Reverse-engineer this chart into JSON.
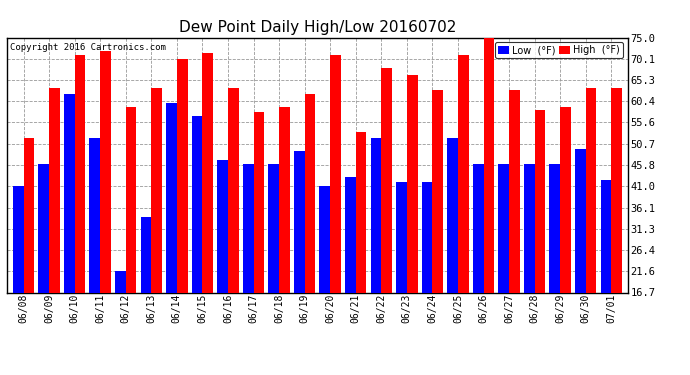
{
  "title": "Dew Point Daily High/Low 20160702",
  "copyright": "Copyright 2016 Cartronics.com",
  "dates": [
    "06/08",
    "06/09",
    "06/10",
    "06/11",
    "06/12",
    "06/13",
    "06/14",
    "06/15",
    "06/16",
    "06/17",
    "06/18",
    "06/19",
    "06/20",
    "06/21",
    "06/22",
    "06/23",
    "06/24",
    "06/25",
    "06/26",
    "06/27",
    "06/28",
    "06/29",
    "06/30",
    "07/01"
  ],
  "low": [
    41.0,
    46.0,
    62.0,
    52.0,
    21.6,
    34.0,
    60.0,
    57.0,
    47.0,
    46.0,
    46.0,
    49.0,
    41.0,
    43.0,
    52.0,
    42.0,
    42.0,
    52.0,
    46.0,
    46.0,
    46.0,
    46.0,
    49.5,
    42.5
  ],
  "high": [
    52.0,
    63.5,
    71.0,
    72.0,
    59.0,
    63.5,
    70.0,
    71.5,
    63.5,
    58.0,
    59.0,
    62.0,
    71.0,
    53.5,
    68.0,
    66.5,
    63.0,
    71.0,
    76.0,
    63.0,
    58.5,
    59.0,
    63.5,
    63.5
  ],
  "low_color": "#0000ff",
  "high_color": "#ff0000",
  "background_color": "#ffffff",
  "grid_color": "#999999",
  "yticks": [
    16.7,
    21.6,
    26.4,
    31.3,
    36.1,
    41.0,
    45.8,
    50.7,
    55.6,
    60.4,
    65.3,
    70.1,
    75.0
  ],
  "ymin": 16.7,
  "ymax": 75.0,
  "bar_width": 0.42,
  "figwidth": 6.9,
  "figheight": 3.75,
  "dpi": 100
}
